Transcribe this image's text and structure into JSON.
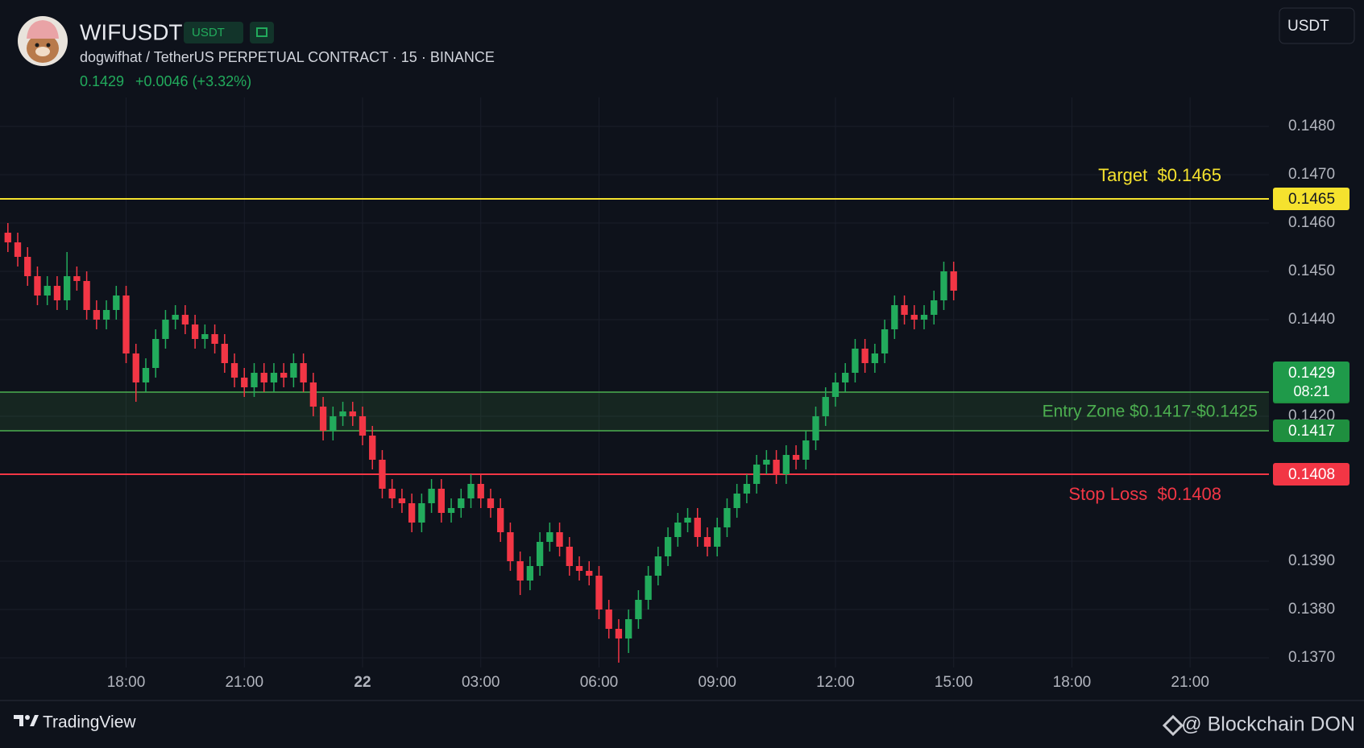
{
  "header": {
    "symbol": "WIFUSDT",
    "badge": "USDT",
    "description": "dogwifhat / TetherUS PERPETUAL CONTRACT · 15 · BINANCE",
    "change": "+0.0046 (+3.32%)",
    "currency_button": "USDT"
  },
  "footer": {
    "brand": "TradingView",
    "credit": "@ Blockchain DON"
  },
  "chart_data": {
    "type": "candlestick",
    "up_color": "#22ab5c",
    "down_color": "#f23645",
    "grid": true,
    "xlim": [
      14.8,
      47
    ],
    "ylim": [
      0.1368,
      0.1486
    ],
    "xticks": [
      {
        "value": 18,
        "label": "18:00"
      },
      {
        "value": 21,
        "label": "21:00"
      },
      {
        "value": 24,
        "label": "22"
      },
      {
        "value": 27,
        "label": "03:00"
      },
      {
        "value": 30,
        "label": "06:00"
      },
      {
        "value": 33,
        "label": "09:00"
      },
      {
        "value": 36,
        "label": "12:00"
      },
      {
        "value": 39,
        "label": "15:00"
      },
      {
        "value": 42,
        "label": "18:00"
      },
      {
        "value": 45,
        "label": "21:00"
      }
    ],
    "yticks": [
      {
        "value": 0.137,
        "label": "0.1370"
      },
      {
        "value": 0.138,
        "label": "0.1380"
      },
      {
        "value": 0.139,
        "label": "0.1390"
      },
      {
        "value": 0.142,
        "label": "0.1420"
      },
      {
        "value": 0.144,
        "label": "0.1440"
      },
      {
        "value": 0.145,
        "label": "0.1450"
      },
      {
        "value": 0.146,
        "label": "0.1460"
      },
      {
        "value": 0.147,
        "label": "0.1470"
      },
      {
        "value": 0.148,
        "label": "0.1480"
      }
    ],
    "x": [
      15,
      15.25,
      15.5,
      15.75,
      16,
      16.25,
      16.5,
      16.75,
      17,
      17.25,
      17.5,
      17.75,
      18,
      18.25,
      18.5,
      18.75,
      19,
      19.25,
      19.5,
      19.75,
      20,
      20.25,
      20.5,
      20.75,
      21,
      21.25,
      21.5,
      21.75,
      22,
      22.25,
      22.5,
      22.75,
      23,
      23.25,
      23.5,
      23.75,
      24,
      24.25,
      24.5,
      24.75,
      25,
      25.25,
      25.5,
      25.75,
      26,
      26.25,
      26.5,
      26.75,
      27,
      27.25,
      27.5,
      27.75,
      28,
      28.25,
      28.5,
      28.75,
      29,
      29.25,
      29.5,
      29.75,
      30,
      30.25,
      30.5,
      30.75,
      31,
      31.25,
      31.5,
      31.75,
      32,
      32.25,
      32.5,
      32.75,
      33,
      33.25,
      33.5,
      33.75,
      34,
      34.25,
      34.5,
      34.75,
      35,
      35.25,
      35.5,
      35.75,
      36,
      36.25,
      36.5,
      36.75,
      37,
      37.25,
      37.5,
      37.75,
      38,
      38.25,
      38.5,
      38.75,
      39
    ],
    "open": [
      0.1458,
      0.1456,
      0.1453,
      0.1449,
      0.1445,
      0.1447,
      0.1444,
      0.1449,
      0.1448,
      0.1442,
      0.144,
      0.1442,
      0.1445,
      0.1433,
      0.1427,
      0.143,
      0.1436,
      0.144,
      0.1441,
      0.1439,
      0.1436,
      0.1437,
      0.1435,
      0.1431,
      0.1428,
      0.1426,
      0.1429,
      0.1427,
      0.1429,
      0.1428,
      0.1431,
      0.1427,
      0.1422,
      0.1417,
      0.142,
      0.1421,
      0.142,
      0.1416,
      0.1411,
      0.1405,
      0.1403,
      0.1402,
      0.1398,
      0.1402,
      0.1405,
      0.14,
      0.1401,
      0.1403,
      0.1406,
      0.1403,
      0.1401,
      0.1396,
      0.139,
      0.1386,
      0.1389,
      0.1394,
      0.1396,
      0.1393,
      0.1389,
      0.1388,
      0.1387,
      0.138,
      0.1376,
      0.1374,
      0.1378,
      0.1382,
      0.1387,
      0.1391,
      0.1395,
      0.1398,
      0.1399,
      0.1395,
      0.1393,
      0.1397,
      0.1401,
      0.1404,
      0.1406,
      0.141,
      0.1411,
      0.1408,
      0.1412,
      0.1411,
      0.1415,
      0.142,
      0.1424,
      0.1427,
      0.1429,
      0.1434,
      0.1431,
      0.1433,
      0.1438,
      0.1443,
      0.1441,
      0.144,
      0.1441,
      0.1444,
      0.145
    ],
    "high": [
      0.146,
      0.1458,
      0.1455,
      0.1451,
      0.1449,
      0.1449,
      0.1454,
      0.1451,
      0.145,
      0.1444,
      0.1444,
      0.1447,
      0.1447,
      0.1435,
      0.1432,
      0.1438,
      0.1442,
      0.1443,
      0.1443,
      0.1441,
      0.1439,
      0.1439,
      0.1437,
      0.1433,
      0.143,
      0.1431,
      0.1431,
      0.1431,
      0.1431,
      0.1433,
      0.1433,
      0.1429,
      0.1424,
      0.1422,
      0.1423,
      0.1423,
      0.1422,
      0.1418,
      0.1413,
      0.1407,
      0.1405,
      0.1404,
      0.1404,
      0.1407,
      0.1407,
      0.1403,
      0.1405,
      0.1408,
      0.1408,
      0.1405,
      0.1403,
      0.1398,
      0.1392,
      0.1391,
      0.1396,
      0.1398,
      0.1398,
      0.1395,
      0.1391,
      0.139,
      0.1389,
      0.1382,
      0.1378,
      0.138,
      0.1384,
      0.1389,
      0.1393,
      0.1397,
      0.14,
      0.1401,
      0.1401,
      0.1397,
      0.1399,
      0.1403,
      0.1406,
      0.1408,
      0.1412,
      0.1413,
      0.1413,
      0.1414,
      0.1414,
      0.1417,
      0.1422,
      0.1426,
      0.1429,
      0.1431,
      0.1436,
      0.1436,
      0.1435,
      0.144,
      0.1445,
      0.1445,
      0.1443,
      0.1443,
      0.1446,
      0.1452,
      0.1452
    ],
    "low": [
      0.1454,
      0.1451,
      0.1447,
      0.1443,
      0.1443,
      0.1442,
      0.1442,
      0.1446,
      0.144,
      0.1438,
      0.1438,
      0.144,
      0.1431,
      0.1423,
      0.1425,
      0.1428,
      0.1434,
      0.1438,
      0.1437,
      0.1434,
      0.1434,
      0.1433,
      0.1429,
      0.1426,
      0.1424,
      0.1424,
      0.1425,
      0.1425,
      0.1426,
      0.1426,
      0.1425,
      0.142,
      0.1415,
      0.1415,
      0.1418,
      0.1418,
      0.1414,
      0.1409,
      0.1403,
      0.1401,
      0.14,
      0.1396,
      0.1396,
      0.14,
      0.1398,
      0.1398,
      0.1399,
      0.1401,
      0.1401,
      0.1399,
      0.1394,
      0.1388,
      0.1383,
      0.1384,
      0.1387,
      0.1392,
      0.1391,
      0.1387,
      0.1386,
      0.1385,
      0.1378,
      0.1374,
      0.1369,
      0.1371,
      0.1376,
      0.138,
      0.1385,
      0.1389,
      0.1393,
      0.1396,
      0.1393,
      0.1391,
      0.1391,
      0.1395,
      0.1399,
      0.1402,
      0.1404,
      0.1408,
      0.1406,
      0.1406,
      0.1409,
      0.1409,
      0.1413,
      0.1418,
      0.1422,
      0.1425,
      0.1427,
      0.1429,
      0.1429,
      0.1431,
      0.1436,
      0.1439,
      0.1438,
      0.1438,
      0.1439,
      0.1442,
      0.1444
    ],
    "close": [
      0.1456,
      0.1453,
      0.1449,
      0.1445,
      0.1447,
      0.1444,
      0.1449,
      0.1448,
      0.1442,
      0.144,
      0.1442,
      0.1445,
      0.1433,
      0.1427,
      0.143,
      0.1436,
      0.144,
      0.1441,
      0.1439,
      0.1436,
      0.1437,
      0.1435,
      0.1431,
      0.1428,
      0.1426,
      0.1429,
      0.1427,
      0.1429,
      0.1428,
      0.1431,
      0.1427,
      0.1422,
      0.1417,
      0.142,
      0.1421,
      0.142,
      0.1416,
      0.1411,
      0.1405,
      0.1403,
      0.1402,
      0.1398,
      0.1402,
      0.1405,
      0.14,
      0.1401,
      0.1403,
      0.1406,
      0.1403,
      0.1401,
      0.1396,
      0.139,
      0.1386,
      0.1389,
      0.1394,
      0.1396,
      0.1393,
      0.1389,
      0.1388,
      0.1387,
      0.138,
      0.1376,
      0.1374,
      0.1378,
      0.1382,
      0.1387,
      0.1391,
      0.1395,
      0.1398,
      0.1399,
      0.1395,
      0.1393,
      0.1397,
      0.1401,
      0.1404,
      0.1406,
      0.141,
      0.1411,
      0.1408,
      0.1412,
      0.1411,
      0.1415,
      0.142,
      0.1424,
      0.1427,
      0.1429,
      0.1434,
      0.1431,
      0.1433,
      0.1438,
      0.1443,
      0.1441,
      0.144,
      0.1441,
      0.1444,
      0.145,
      0.1446
    ],
    "last_price": 0.1429,
    "countdown": "08:21",
    "target": {
      "value": 0.1465,
      "text": "Target  $0.1465",
      "color": "#f5e22e"
    },
    "entry_zone": {
      "low": 0.1417,
      "high": 0.1425,
      "text": "Entry Zone $0.1417-$0.1425",
      "color": "#4caf50"
    },
    "stop_loss": {
      "value": 0.1408,
      "text": "Stop Loss  $0.1408",
      "color": "#f23645"
    }
  }
}
